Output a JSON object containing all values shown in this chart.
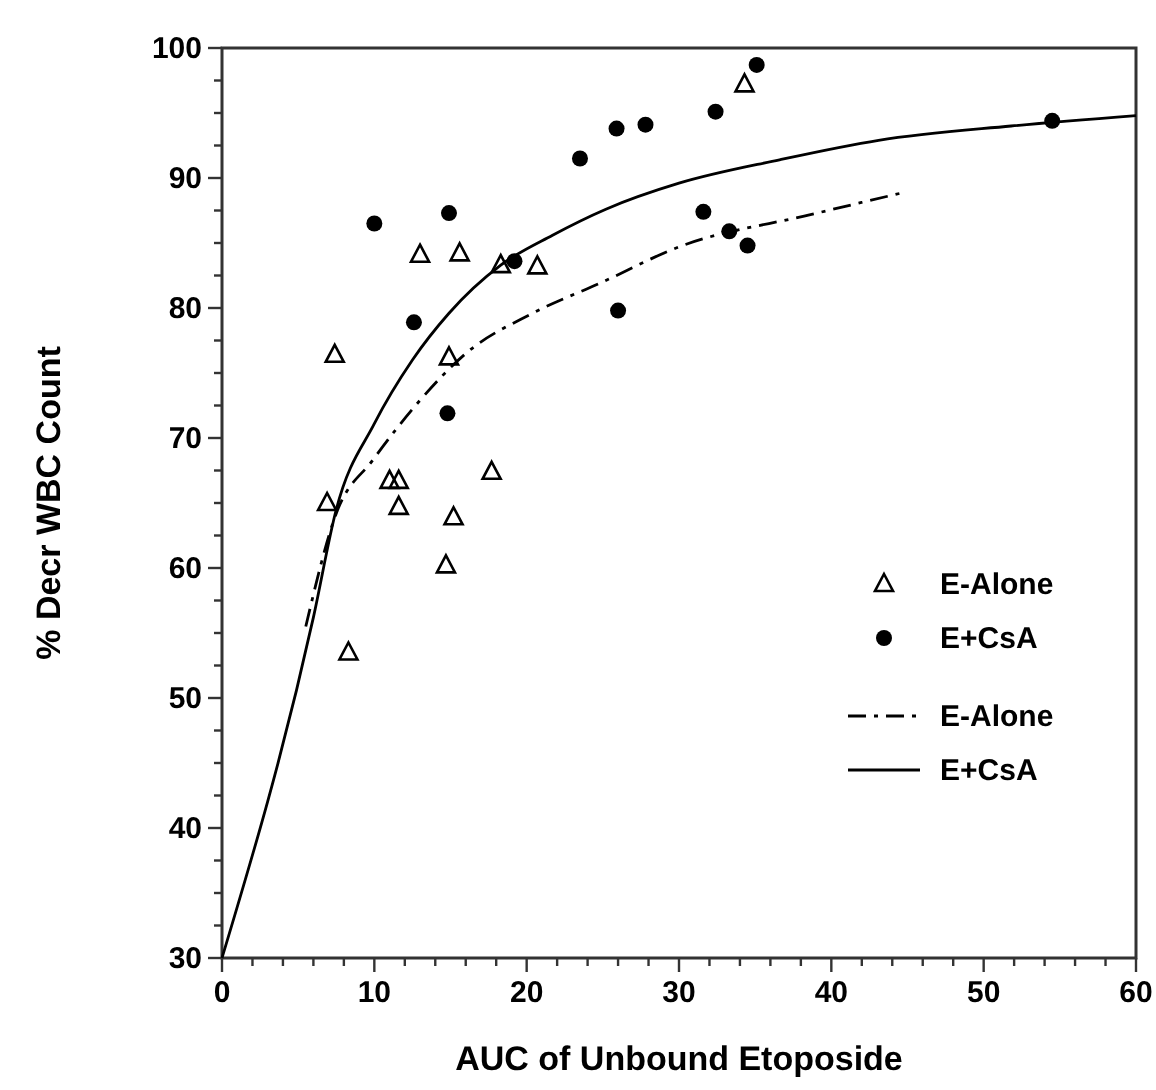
{
  "chart_data": {
    "type": "scatter",
    "xlabel": "AUC of Unbound Etoposide",
    "ylabel": "% Decr WBC Count",
    "xlim": [
      0,
      60
    ],
    "ylim": [
      30,
      100
    ],
    "xticks": [
      0,
      {
        "value": 2,
        "label": null
      },
      {
        "value": 4,
        "label": null
      },
      {
        "value": 6,
        "label": null
      },
      {
        "value": 8,
        "label": null
      },
      10,
      {
        "value": 12,
        "label": null
      },
      {
        "value": 14,
        "label": null
      },
      {
        "value": 16,
        "label": null
      },
      {
        "value": 18,
        "label": null
      },
      20,
      {
        "value": 22,
        "label": null
      },
      {
        "value": 24,
        "label": null
      },
      {
        "value": 26,
        "label": null
      },
      {
        "value": 28,
        "label": null
      },
      30,
      {
        "value": 32,
        "label": null
      },
      {
        "value": 34,
        "label": null
      },
      {
        "value": 36,
        "label": null
      },
      {
        "value": 38,
        "label": null
      },
      40,
      {
        "value": 42,
        "label": null
      },
      {
        "value": 44,
        "label": null
      },
      {
        "value": 46,
        "label": null
      },
      {
        "value": 48,
        "label": null
      },
      50,
      {
        "value": 52,
        "label": null
      },
      {
        "value": 54,
        "label": null
      },
      {
        "value": 56,
        "label": null
      },
      {
        "value": 58,
        "label": null
      },
      60
    ],
    "yticks": [
      30,
      {
        "value": 32.5,
        "label": null
      },
      {
        "value": 35,
        "label": null
      },
      {
        "value": 37.5,
        "label": null
      },
      40,
      {
        "value": 42.5,
        "label": null
      },
      {
        "value": 45,
        "label": null
      },
      {
        "value": 47.5,
        "label": null
      },
      50,
      {
        "value": 52.5,
        "label": null
      },
      {
        "value": 55,
        "label": null
      },
      {
        "value": 57.5,
        "label": null
      },
      60,
      {
        "value": 62.5,
        "label": null
      },
      {
        "value": 65,
        "label": null
      },
      {
        "value": 67.5,
        "label": null
      },
      70,
      {
        "value": 72.5,
        "label": null
      },
      {
        "value": 75,
        "label": null
      },
      {
        "value": 77.5,
        "label": null
      },
      80,
      {
        "value": 82.5,
        "label": null
      },
      {
        "value": 85,
        "label": null
      },
      {
        "value": 87.5,
        "label": null
      },
      90,
      {
        "value": 92.5,
        "label": null
      },
      {
        "value": 95,
        "label": null
      },
      {
        "value": 97.5,
        "label": null
      },
      100
    ],
    "grid": false,
    "legend": "right",
    "series": [
      {
        "name": "E-Alone",
        "marker": "triangle",
        "color": "#000000",
        "x": [
          7.4,
          13.0,
          15.6,
          18.3,
          20.7,
          14.9,
          17.7,
          11.0,
          11.6,
          11.6,
          6.9,
          15.2,
          14.7,
          8.3,
          34.3
        ],
        "values": [
          76.4,
          84.1,
          84.2,
          83.3,
          83.2,
          76.2,
          67.4,
          66.7,
          66.7,
          64.7,
          65.0,
          63.9,
          60.2,
          53.5,
          97.2
        ]
      },
      {
        "name": "E+CsA",
        "marker": "circle",
        "color": "#000000",
        "x": [
          10.0,
          14.9,
          19.2,
          12.6,
          14.8,
          23.5,
          25.9,
          27.8,
          26.0,
          32.4,
          35.1,
          31.6,
          33.3,
          34.5,
          54.5
        ],
        "values": [
          86.5,
          87.3,
          83.6,
          78.9,
          71.9,
          91.5,
          93.8,
          94.1,
          79.8,
          95.1,
          98.7,
          87.4,
          85.9,
          84.8,
          94.4
        ]
      },
      {
        "name": "E-Alone",
        "type": "line",
        "line_style": "dashed",
        "color": "#000000",
        "x": [
          5.5,
          7.5,
          9.9,
          13.0,
          16.0,
          20.4,
          24.8,
          30.0,
          38.7,
          44.8
        ],
        "values": [
          55.5,
          64.2,
          68.3,
          72.9,
          76.5,
          79.6,
          81.9,
          84.7,
          87.2,
          88.9
        ]
      },
      {
        "name": "E+CsA",
        "type": "line",
        "line_style": "solid",
        "color": "#000000",
        "x": [
          0,
          6.0,
          7.5,
          10.0,
          12.5,
          14.9,
          18.3,
          21.7,
          25.2,
          30.0,
          36.6,
          43.1,
          51.8,
          60
        ],
        "values": [
          30,
          56.2,
          64.5,
          71.1,
          76.0,
          79.6,
          83.3,
          85.6,
          87.6,
          89.6,
          91.4,
          92.9,
          94.0,
          94.8
        ]
      }
    ]
  }
}
